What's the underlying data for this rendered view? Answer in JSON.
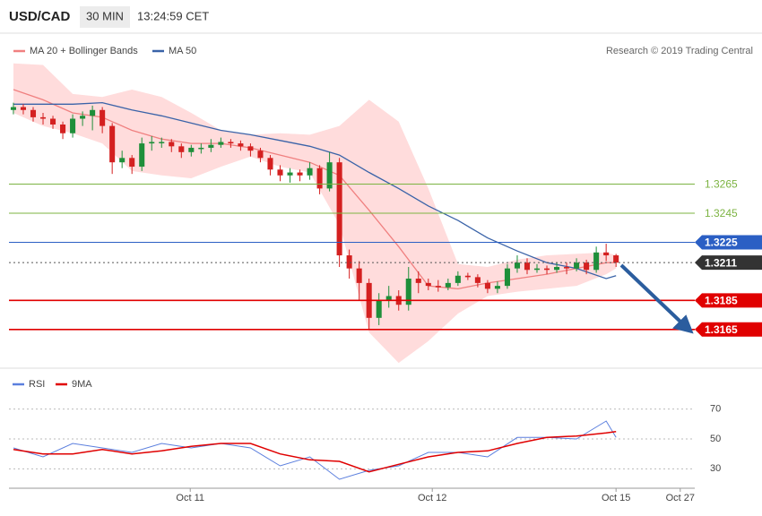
{
  "chart_data": [
    {
      "type": "candlestick",
      "title": "USD/CAD",
      "timeframe": "30 MIN",
      "timestamp": "13:24:59 CET",
      "source": "Research © 2019 Trading Central",
      "xlim": [
        -0.45,
        68.97
      ],
      "ylim": [
        1.3139,
        1.3367
      ],
      "up_color": "#1e8f3a",
      "down_color": "#d42020",
      "ohlc": [
        [
          1.3316,
          1.3321,
          1.3313,
          1.3318
        ],
        [
          1.3318,
          1.332,
          1.3313,
          1.3316
        ],
        [
          1.3316,
          1.3318,
          1.3308,
          1.3311
        ],
        [
          1.3311,
          1.3314,
          1.3306,
          1.331
        ],
        [
          1.331,
          1.3312,
          1.3303,
          1.3306
        ],
        [
          1.3306,
          1.3308,
          1.3296,
          1.33
        ],
        [
          1.33,
          1.3313,
          1.3297,
          1.331
        ],
        [
          1.331,
          1.3315,
          1.3305,
          1.3312
        ],
        [
          1.3312,
          1.3319,
          1.3302,
          1.3316
        ],
        [
          1.3316,
          1.3318,
          1.33,
          1.3305
        ],
        [
          1.3305,
          1.3307,
          1.3272,
          1.328
        ],
        [
          1.328,
          1.3288,
          1.3276,
          1.3283
        ],
        [
          1.3283,
          1.3285,
          1.3272,
          1.3277
        ],
        [
          1.3277,
          1.3297,
          1.3274,
          1.3293
        ],
        [
          1.3293,
          1.3298,
          1.3288,
          1.3294
        ],
        [
          1.3294,
          1.3297,
          1.329,
          1.3294
        ],
        [
          1.3294,
          1.3296,
          1.3287,
          1.3291
        ],
        [
          1.3291,
          1.3293,
          1.3283,
          1.3287
        ],
        [
          1.3287,
          1.3292,
          1.3284,
          1.329
        ],
        [
          1.329,
          1.3293,
          1.3286,
          1.329
        ],
        [
          1.329,
          1.3296,
          1.3287,
          1.3292
        ],
        [
          1.3292,
          1.3297,
          1.329,
          1.3294
        ],
        [
          1.3294,
          1.3296,
          1.329,
          1.3293
        ],
        [
          1.3293,
          1.3295,
          1.3288,
          1.3291
        ],
        [
          1.3291,
          1.3293,
          1.3284,
          1.3288
        ],
        [
          1.3288,
          1.329,
          1.328,
          1.3283
        ],
        [
          1.3283,
          1.3285,
          1.3271,
          1.3275
        ],
        [
          1.3275,
          1.3278,
          1.3267,
          1.3271
        ],
        [
          1.3271,
          1.3276,
          1.3266,
          1.3273
        ],
        [
          1.3273,
          1.3275,
          1.3267,
          1.3271
        ],
        [
          1.3271,
          1.328,
          1.3268,
          1.3276
        ],
        [
          1.3276,
          1.3278,
          1.3258,
          1.3262
        ],
        [
          1.3262,
          1.3287,
          1.326,
          1.328
        ],
        [
          1.328,
          1.3283,
          1.3208,
          1.3216
        ],
        [
          1.3216,
          1.322,
          1.32,
          1.3207
        ],
        [
          1.3207,
          1.3212,
          1.3185,
          1.3197
        ],
        [
          1.3197,
          1.32,
          1.3165,
          1.3173
        ],
        [
          1.3173,
          1.319,
          1.3168,
          1.3185
        ],
        [
          1.3185,
          1.3195,
          1.318,
          1.3188
        ],
        [
          1.3188,
          1.3192,
          1.3178,
          1.3182
        ],
        [
          1.3182,
          1.3208,
          1.3178,
          1.32
        ],
        [
          1.32,
          1.3205,
          1.319,
          1.3197
        ],
        [
          1.3197,
          1.32,
          1.3192,
          1.3195
        ],
        [
          1.3195,
          1.3199,
          1.3191,
          1.3194
        ],
        [
          1.3194,
          1.32,
          1.3192,
          1.3197
        ],
        [
          1.3197,
          1.3205,
          1.3195,
          1.3202
        ],
        [
          1.3202,
          1.3204,
          1.3199,
          1.3201
        ],
        [
          1.3201,
          1.3203,
          1.3194,
          1.3197
        ],
        [
          1.3197,
          1.3199,
          1.319,
          1.3193
        ],
        [
          1.3193,
          1.3198,
          1.319,
          1.3195
        ],
        [
          1.3195,
          1.321,
          1.3193,
          1.3207
        ],
        [
          1.3207,
          1.3216,
          1.3204,
          1.3211
        ],
        [
          1.3211,
          1.3214,
          1.3203,
          1.3206
        ],
        [
          1.3206,
          1.321,
          1.3204,
          1.3207
        ],
        [
          1.3207,
          1.3209,
          1.3203,
          1.3206
        ],
        [
          1.3206,
          1.3211,
          1.3204,
          1.3208
        ],
        [
          1.3208,
          1.3211,
          1.3203,
          1.3207
        ],
        [
          1.3207,
          1.3214,
          1.3205,
          1.3211
        ],
        [
          1.3211,
          1.3213,
          1.3203,
          1.3206
        ],
        [
          1.3206,
          1.3222,
          1.3204,
          1.3218
        ],
        [
          1.3218,
          1.3224,
          1.3212,
          1.3216
        ],
        [
          1.3216,
          1.3217,
          1.3208,
          1.3211
        ]
      ],
      "series": [
        {
          "name": "MA 20 + Bollinger Bands",
          "color": "#f08080",
          "band_color": "#ffdcdc",
          "x": [
            0,
            3,
            6,
            9,
            12,
            15,
            18,
            21,
            24,
            27,
            30,
            33,
            36,
            39,
            42,
            45,
            48,
            51,
            54,
            57,
            60,
            61
          ],
          "values": [
            1.333,
            1.3323,
            1.3314,
            1.3311,
            1.3302,
            1.3296,
            1.3293,
            1.3293,
            1.329,
            1.3285,
            1.328,
            1.3271,
            1.3247,
            1.3222,
            1.3195,
            1.3193,
            1.3197,
            1.32,
            1.3203,
            1.3207,
            1.3211,
            1.3211
          ],
          "upper": [
            1.3348,
            1.3347,
            1.3327,
            1.3325,
            1.333,
            1.3325,
            1.3314,
            1.3302,
            1.3299,
            1.33,
            1.3299,
            1.3305,
            1.3323,
            1.3308,
            1.3262,
            1.321,
            1.3208,
            1.3213,
            1.3216,
            1.3217,
            1.3218,
            1.3216
          ],
          "lower": [
            1.3314,
            1.3305,
            1.33,
            1.3293,
            1.3274,
            1.3271,
            1.3269,
            1.3277,
            1.3284,
            1.3277,
            1.3273,
            1.3237,
            1.3163,
            1.3142,
            1.3157,
            1.3176,
            1.3188,
            1.3191,
            1.3193,
            1.3195,
            1.3203,
            1.3207
          ]
        },
        {
          "name": "MA 50",
          "color": "#3a63a8",
          "x": [
            0,
            3,
            6,
            9,
            12,
            15,
            18,
            21,
            24,
            27,
            30,
            33,
            36,
            39,
            42,
            45,
            48,
            51,
            54,
            57,
            60,
            61
          ],
          "values": [
            1.332,
            1.332,
            1.332,
            1.3321,
            1.3316,
            1.3312,
            1.3307,
            1.3302,
            1.3299,
            1.3295,
            1.3291,
            1.3285,
            1.3273,
            1.3262,
            1.325,
            1.324,
            1.3228,
            1.3219,
            1.3211,
            1.3207,
            1.32,
            1.3202
          ]
        }
      ],
      "levels": [
        {
          "value": 1.3265,
          "color": "#7cb342",
          "style": "line"
        },
        {
          "value": 1.3245,
          "color": "#7cb342",
          "style": "line"
        },
        {
          "value": 1.3225,
          "color": "#2b5fc4",
          "style": "box"
        },
        {
          "value": 1.3211,
          "color": "#333333",
          "style": "dotted-box"
        },
        {
          "value": 1.3185,
          "color": "#e00000",
          "style": "box"
        },
        {
          "value": 1.3165,
          "color": "#e00000",
          "style": "box"
        }
      ]
    },
    {
      "type": "line",
      "xlim": [
        -0.45,
        68.97
      ],
      "ylim": [
        17,
        92
      ],
      "xticks": [
        {
          "value": 17.9,
          "label": "Oct 11"
        },
        {
          "value": 42.4,
          "label": "Oct 12"
        },
        {
          "value": 61.0,
          "label": "Oct 15"
        },
        {
          "value": 67.5,
          "label": "Oct 27"
        }
      ],
      "yticks": [
        30,
        50,
        70
      ],
      "series": [
        {
          "name": "RSI",
          "color": "#5b7fde",
          "x": [
            0,
            3,
            6,
            9,
            12,
            15,
            18,
            21,
            24,
            27,
            30,
            33,
            36,
            39,
            42,
            45,
            48,
            51,
            54,
            57,
            60,
            61
          ],
          "values": [
            44,
            38,
            47,
            44,
            41,
            47,
            44,
            47,
            44,
            32,
            38,
            23,
            29,
            32,
            41,
            41,
            38,
            51,
            51,
            50,
            62,
            51
          ]
        },
        {
          "name": "9MA",
          "color": "#e00000",
          "x": [
            0,
            3,
            6,
            9,
            12,
            15,
            18,
            21,
            24,
            27,
            30,
            33,
            36,
            39,
            42,
            45,
            48,
            51,
            54,
            57,
            60,
            61
          ],
          "values": [
            43,
            40,
            40,
            43,
            40,
            42,
            45,
            47,
            47,
            40,
            36,
            35,
            28,
            33,
            38,
            41,
            42,
            47,
            51,
            52,
            54,
            55
          ]
        }
      ]
    }
  ]
}
